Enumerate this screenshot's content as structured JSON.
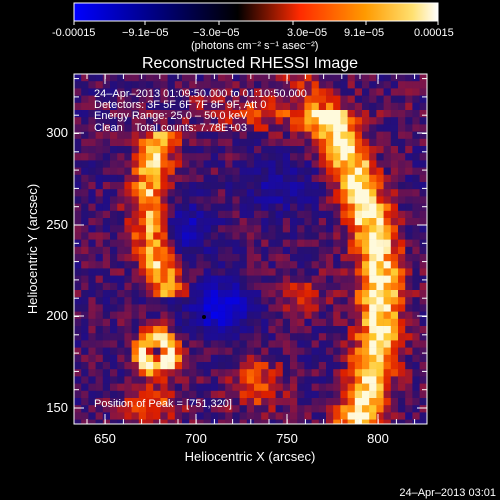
{
  "colorbar": {
    "tick_labels": [
      "-0.00015",
      "−9.1e−05",
      "−3.0e−05",
      "3.0e−05",
      "9.1e−05",
      "0.00015"
    ],
    "unit_label": "(photons cm⁻² s⁻¹ asec⁻²)",
    "stops": [
      "#0000ff",
      "#000000",
      "#ff6a00",
      "#ffd000",
      "#ffffff"
    ]
  },
  "title": "Reconstructed RHESSI Image",
  "info_lines": [
    "24–Apr–2013 01:09:50.000 to 01:10:50.000",
    "Detectors: 3F 5F 6F 7F 8F 9F, Att 0",
    "Energy Range: 25.0 – 50.0 keV",
    "Clean    Total counts: 7.78E+03"
  ],
  "peak_label": "Position of Peak = [751,320]",
  "x_axis": {
    "label": "Heliocentric X (arcsec)",
    "ticks": [
      "650",
      "700",
      "750",
      "800"
    ]
  },
  "y_axis": {
    "label": "Heliocentric Y (arcsec)",
    "ticks": [
      "150",
      "200",
      "250",
      "300"
    ]
  },
  "timestamp": "24–Apr–2013 03:01"
}
